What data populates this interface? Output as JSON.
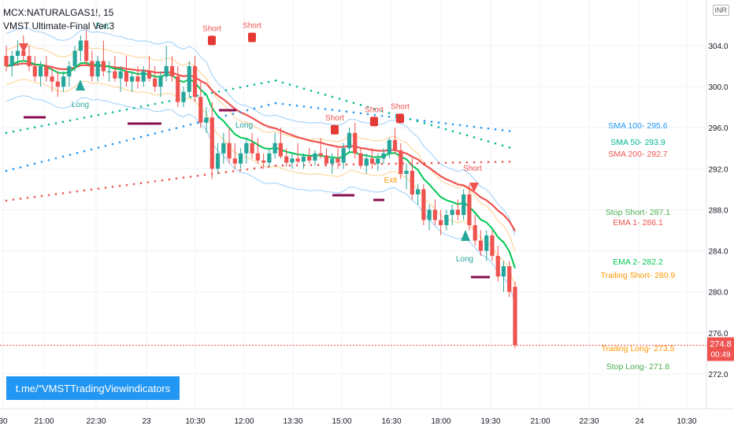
{
  "legend": {
    "symbol": "MCX:NATURALGAS1!, 15",
    "indicator": "VMST Ultimate-Final Ver.3"
  },
  "currency_label": "INR",
  "price_tag": {
    "value": "274.8",
    "countdown": "00:49",
    "color": "#ef5350"
  },
  "promo_link": "t.me/“VMSTTradingViewindicators",
  "chart_data": {
    "type": "candlestick",
    "ylim": [
      270,
      308
    ],
    "y_ticks": [
      "304.0",
      "300.0",
      "296.0",
      "292.0",
      "288.0",
      "284.0",
      "280.0",
      "276.0",
      "272.0"
    ],
    "x_ticks": [
      "30",
      "21:00",
      "22:30",
      "23",
      "10:30",
      "12:00",
      "13:30",
      "15:00",
      "16:30",
      "18:00",
      "19:30",
      "21:00",
      "22:30",
      "24",
      "10:30"
    ],
    "levels": [
      {
        "label": "SMA 100- 295.6",
        "value": 295.6,
        "color": "#2196f3"
      },
      {
        "label": "SMA 50- 293.9",
        "value": 293.9,
        "color": "#00b894"
      },
      {
        "label": "SMA 200- 292.7",
        "value": 292.7,
        "color": "#ef5350"
      },
      {
        "label": "Stop Short- 287.1",
        "value": 287.1,
        "color": "#4caf50"
      },
      {
        "label": "EMA 1- 286.1",
        "value": 286.1,
        "color": "#ef5350"
      },
      {
        "label": "EMA 2- 282.2",
        "value": 282.2,
        "color": "#00c853"
      },
      {
        "label": "Trailing Short- 280.9",
        "value": 280.9,
        "color": "#ff9800"
      },
      {
        "label": "Trailing Long- 273.5",
        "value": 273.5,
        "color": "#ff9800"
      },
      {
        "label": "Stop Long- 271.8",
        "value": 271.8,
        "color": "#4caf50"
      }
    ],
    "last_price": 274.8,
    "candles": [
      [
        303.0,
        304.0,
        301.5,
        302.0
      ],
      [
        302.0,
        303.5,
        301.0,
        303.0
      ],
      [
        303.0,
        304.5,
        302.0,
        303.5
      ],
      [
        303.5,
        305.0,
        302.5,
        303.0
      ],
      [
        303.0,
        304.0,
        301.5,
        302.0
      ],
      [
        302.0,
        303.0,
        300.5,
        301.0
      ],
      [
        301.0,
        302.5,
        300.0,
        302.0
      ],
      [
        302.0,
        303.0,
        300.5,
        301.0
      ],
      [
        301.0,
        302.0,
        299.5,
        300.5
      ],
      [
        300.5,
        301.5,
        299.0,
        300.0
      ],
      [
        300.0,
        301.5,
        299.5,
        301.0
      ],
      [
        301.0,
        302.5,
        300.0,
        302.0
      ],
      [
        302.0,
        304.0,
        301.5,
        303.5
      ],
      [
        303.5,
        305.0,
        302.5,
        304.5
      ],
      [
        304.5,
        305.5,
        302.0,
        302.5
      ],
      [
        302.5,
        303.5,
        300.5,
        301.0
      ],
      [
        301.0,
        303.0,
        300.5,
        302.5
      ],
      [
        302.5,
        304.5,
        301.0,
        301.5
      ],
      [
        301.5,
        302.5,
        300.5,
        301.5
      ],
      [
        301.5,
        303.0,
        300.5,
        300.8
      ],
      [
        300.8,
        302.0,
        299.5,
        301.5
      ],
      [
        301.5,
        303.0,
        300.0,
        300.5
      ],
      [
        300.5,
        301.5,
        299.5,
        301.0
      ],
      [
        301.0,
        302.0,
        299.8,
        300.5
      ],
      [
        300.5,
        302.0,
        300.0,
        301.5
      ],
      [
        301.5,
        303.0,
        300.5,
        300.8
      ],
      [
        300.8,
        302.0,
        299.5,
        300.0
      ],
      [
        300.0,
        301.5,
        299.0,
        301.0
      ],
      [
        301.0,
        304.0,
        300.5,
        302.0
      ],
      [
        302.0,
        303.0,
        300.5,
        301.0
      ],
      [
        301.0,
        302.0,
        298.0,
        298.5
      ],
      [
        298.5,
        300.0,
        298.0,
        299.5
      ],
      [
        299.5,
        302.5,
        299.0,
        302.0
      ],
      [
        302.0,
        303.0,
        298.5,
        299.0
      ],
      [
        299.0,
        300.5,
        296.0,
        296.5
      ],
      [
        296.5,
        298.0,
        295.5,
        297.0
      ],
      [
        297.0,
        298.5,
        291.0,
        292.0
      ],
      [
        292.0,
        294.5,
        291.5,
        293.5
      ],
      [
        293.5,
        295.5,
        292.5,
        294.5
      ],
      [
        294.5,
        296.0,
        292.5,
        293.0
      ],
      [
        293.0,
        294.5,
        292.0,
        292.5
      ],
      [
        292.5,
        294.0,
        292.0,
        293.5
      ],
      [
        293.5,
        295.0,
        292.5,
        294.5
      ],
      [
        294.5,
        295.5,
        293.0,
        293.5
      ],
      [
        293.5,
        295.0,
        292.5,
        292.8
      ],
      [
        292.8,
        293.5,
        292.0,
        292.6
      ],
      [
        292.6,
        294.0,
        292.2,
        293.5
      ],
      [
        293.5,
        295.5,
        293.0,
        294.5
      ],
      [
        294.5,
        296.0,
        293.0,
        293.2
      ],
      [
        293.2,
        294.0,
        292.2,
        292.6
      ],
      [
        292.6,
        293.5,
        292.0,
        293.0
      ],
      [
        293.0,
        294.5,
        292.5,
        292.7
      ],
      [
        292.7,
        293.5,
        292.0,
        293.2
      ],
      [
        293.2,
        294.0,
        292.5,
        292.8
      ],
      [
        292.8,
        293.8,
        292.3,
        293.5
      ],
      [
        293.5,
        295.0,
        293.0,
        293.3
      ],
      [
        293.3,
        294.0,
        292.2,
        292.5
      ],
      [
        292.5,
        293.5,
        291.5,
        293.0
      ],
      [
        293.0,
        294.0,
        292.0,
        292.6
      ],
      [
        292.6,
        294.5,
        292.0,
        294.0
      ],
      [
        294.0,
        296.0,
        293.5,
        295.5
      ],
      [
        295.5,
        296.5,
        293.0,
        293.5
      ],
      [
        293.5,
        294.0,
        292.0,
        292.3
      ],
      [
        292.3,
        293.5,
        291.5,
        293.0
      ],
      [
        293.0,
        294.0,
        292.0,
        292.5
      ],
      [
        292.5,
        293.5,
        291.8,
        293.0
      ],
      [
        293.0,
        294.0,
        292.5,
        293.5
      ],
      [
        293.5,
        295.0,
        293.0,
        294.8
      ],
      [
        294.8,
        296.0,
        293.5,
        293.8
      ],
      [
        293.8,
        294.5,
        291.0,
        291.5
      ],
      [
        291.5,
        292.5,
        290.0,
        291.8
      ],
      [
        291.8,
        293.0,
        289.0,
        289.5
      ],
      [
        289.5,
        290.5,
        288.5,
        290.0
      ],
      [
        290.0,
        290.5,
        286.5,
        287.0
      ],
      [
        287.0,
        288.5,
        286.0,
        288.0
      ],
      [
        288.0,
        289.0,
        286.5,
        287.0
      ],
      [
        287.0,
        288.0,
        285.5,
        286.5
      ],
      [
        286.5,
        288.0,
        286.0,
        287.5
      ],
      [
        287.5,
        288.5,
        286.5,
        288.0
      ],
      [
        288.0,
        289.0,
        287.0,
        287.5
      ],
      [
        287.5,
        290.0,
        287.0,
        289.5
      ],
      [
        289.5,
        290.5,
        286.0,
        286.5
      ],
      [
        286.5,
        287.5,
        284.5,
        285.0
      ],
      [
        285.0,
        286.0,
        283.5,
        284.0
      ],
      [
        284.0,
        286.0,
        283.0,
        285.5
      ],
      [
        285.5,
        286.0,
        283.0,
        283.5
      ],
      [
        283.5,
        284.5,
        281.0,
        281.5
      ],
      [
        281.5,
        283.0,
        280.0,
        282.5
      ],
      [
        282.5,
        283.0,
        279.5,
        280.0
      ],
      [
        280.5,
        281.0,
        274.5,
        274.8
      ]
    ]
  }
}
